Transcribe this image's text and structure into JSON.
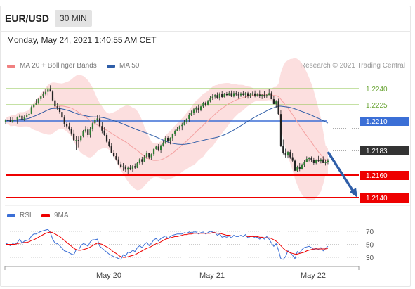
{
  "header": {
    "symbol": "EUR/USD",
    "timeframe": "30 MIN",
    "datetime": "Monday, May 24, 2021 1:40:55 AM CET"
  },
  "legend": {
    "ma20": {
      "label": "MA 20 + Bollinger Bands",
      "color": "#f08080"
    },
    "ma50": {
      "label": "MA 50",
      "color": "#2f5ea8"
    },
    "copyright": "Research © 2021 Trading Central"
  },
  "levels": [
    {
      "value": "1.2240",
      "color": "#8bc34a",
      "kind": "resistance"
    },
    {
      "value": "1.2225",
      "color": "#8bc34a",
      "kind": "resistance"
    },
    {
      "value": "1.2210",
      "color": "#3b6fd6",
      "kind": "pivot"
    },
    {
      "value": "1.2183",
      "color": "#333333",
      "kind": "last-price"
    },
    {
      "value": "1.2160",
      "color": "#ee0000",
      "kind": "target"
    },
    {
      "value": "1.2140",
      "color": "#ee0000",
      "kind": "target"
    }
  ],
  "rsi": {
    "legend_rsi": "RSI",
    "legend_ma": "9MA",
    "rsi_color": "#3b6fd6",
    "ma_color": "#ee0000",
    "ticks": [
      "70",
      "50",
      "30"
    ]
  },
  "xaxis": {
    "ticks": [
      "May 20",
      "May 21",
      "May 22"
    ]
  },
  "price_series": [
    [
      18.44,
      18.57,
      18.34,
      18.52
    ],
    [
      18.52,
      18.66,
      18.41,
      18.51
    ],
    [
      18.51,
      18.66,
      18.42,
      18.42
    ],
    [
      18.42,
      18.67,
      18.39,
      18.55
    ],
    [
      18.55,
      18.66,
      18.47,
      18.52
    ],
    [
      18.52,
      18.69,
      18.36,
      18.67
    ],
    [
      18.67,
      18.8,
      18.62,
      18.72
    ],
    [
      18.72,
      18.91,
      18.53,
      18.53
    ],
    [
      18.53,
      18.74,
      18.48,
      18.68
    ],
    [
      18.68,
      18.85,
      18.63,
      18.74
    ],
    [
      18.74,
      18.85,
      18.67,
      18.81
    ],
    [
      18.81,
      19.18,
      18.8,
      19.12
    ],
    [
      19.12,
      19.26,
      19.06,
      19.24
    ],
    [
      19.24,
      19.48,
      19.23,
      19.29
    ],
    [
      19.29,
      19.52,
      19.25,
      19.49
    ],
    [
      19.49,
      19.62,
      19.41,
      19.61
    ],
    [
      19.61,
      19.82,
      19.55,
      19.71
    ],
    [
      19.71,
      19.94,
      19.66,
      19.82
    ],
    [
      19.82,
      20.05,
      19.66,
      19.93
    ],
    [
      19.93,
      20.12,
      19.9,
      19.83
    ],
    [
      19.83,
      19.9,
      19.38,
      19.43
    ],
    [
      19.43,
      19.53,
      19.1,
      19.15
    ],
    [
      19.15,
      19.31,
      18.97,
      19.1
    ],
    [
      19.1,
      19.17,
      18.81,
      18.9
    ],
    [
      18.9,
      18.93,
      18.48,
      18.64
    ],
    [
      18.64,
      18.74,
      18.21,
      18.35
    ],
    [
      18.35,
      18.45,
      18.15,
      18.24
    ],
    [
      18.24,
      18.4,
      18.05,
      18.12
    ],
    [
      18.12,
      18.22,
      17.82,
      17.91
    ],
    [
      17.91,
      18.07,
      17.55,
      17.6
    ],
    [
      17.6,
      17.8,
      17.14,
      17.61
    ],
    [
      17.61,
      17.77,
      17.27,
      17.6
    ],
    [
      17.6,
      17.83,
      17.51,
      17.79
    ],
    [
      17.79,
      18.07,
      17.73,
      18.02
    ],
    [
      18.02,
      18.25,
      17.95,
      18.09
    ],
    [
      18.09,
      18.19,
      17.73,
      17.84
    ],
    [
      17.84,
      18.21,
      17.72,
      18.1
    ],
    [
      18.1,
      18.45,
      17.99,
      18.38
    ],
    [
      18.38,
      18.61,
      18.3,
      18.52
    ],
    [
      18.52,
      18.74,
      18.46,
      18.6
    ],
    [
      18.6,
      18.76,
      18.18,
      18.25
    ],
    [
      18.25,
      18.42,
      17.92,
      18.04
    ],
    [
      18.04,
      18.22,
      17.8,
      17.84
    ],
    [
      17.84,
      17.93,
      17.45,
      17.53
    ],
    [
      17.53,
      17.67,
      17.28,
      17.32
    ],
    [
      17.32,
      17.46,
      17.0,
      17.03
    ],
    [
      17.03,
      17.15,
      16.83,
      16.87
    ],
    [
      16.87,
      17.0,
      16.67,
      16.72
    ],
    [
      16.72,
      16.85,
      16.45,
      16.5
    ],
    [
      16.5,
      16.62,
      16.32,
      16.37
    ],
    [
      16.37,
      16.55,
      16.2,
      16.4
    ],
    [
      16.4,
      16.46,
      16.16,
      16.25
    ],
    [
      16.25,
      16.4,
      16.06,
      16.33
    ],
    [
      16.33,
      16.48,
      16.22,
      16.26
    ],
    [
      16.26,
      16.47,
      16.14,
      16.41
    ],
    [
      16.41,
      16.53,
      16.28,
      16.34
    ],
    [
      16.34,
      16.6,
      16.32,
      16.55
    ],
    [
      16.55,
      16.79,
      16.49,
      16.73
    ],
    [
      16.73,
      16.84,
      16.49,
      16.62
    ],
    [
      16.62,
      16.91,
      16.58,
      16.83
    ],
    [
      16.83,
      17.1,
      16.75,
      17.0
    ],
    [
      17.0,
      17.02,
      16.74,
      16.82
    ],
    [
      16.82,
      16.99,
      16.69,
      16.96
    ],
    [
      16.96,
      17.22,
      16.87,
      17.19
    ],
    [
      17.19,
      17.36,
      17.17,
      17.31
    ],
    [
      17.31,
      17.42,
      17.09,
      17.16
    ],
    [
      17.16,
      17.4,
      17.03,
      17.36
    ],
    [
      17.36,
      17.59,
      17.31,
      17.49
    ],
    [
      17.49,
      17.78,
      17.43,
      17.71
    ],
    [
      17.71,
      17.77,
      17.49,
      17.56
    ],
    [
      17.56,
      17.73,
      17.41,
      17.7
    ],
    [
      17.7,
      17.91,
      17.55,
      17.88
    ],
    [
      17.88,
      18.08,
      17.79,
      18.03
    ],
    [
      18.03,
      18.2,
      18.0,
      18.11
    ],
    [
      18.11,
      18.28,
      18.04,
      18.25
    ],
    [
      18.25,
      18.4,
      18.06,
      18.3
    ],
    [
      18.3,
      18.53,
      18.28,
      18.44
    ],
    [
      18.44,
      18.61,
      18.36,
      18.58
    ],
    [
      18.58,
      18.84,
      18.45,
      18.75
    ],
    [
      18.75,
      18.96,
      18.71,
      18.84
    ],
    [
      18.84,
      19.08,
      18.74,
      19.02
    ],
    [
      19.02,
      19.15,
      18.88,
      19.1
    ],
    [
      19.1,
      19.24,
      18.87,
      19.0
    ],
    [
      19.0,
      19.18,
      18.93,
      19.15
    ],
    [
      19.15,
      19.36,
      19.08,
      19.32
    ],
    [
      19.32,
      19.37,
      19.15,
      19.22
    ],
    [
      19.22,
      19.45,
      19.18,
      19.38
    ],
    [
      19.38,
      19.62,
      19.34,
      19.54
    ],
    [
      19.54,
      19.73,
      19.45,
      19.6
    ],
    [
      19.6,
      19.74,
      19.5,
      19.67
    ],
    [
      19.67,
      19.79,
      19.49,
      19.53
    ],
    [
      19.53,
      19.79,
      19.44,
      19.74
    ],
    [
      19.74,
      19.84,
      19.54,
      19.58
    ],
    [
      19.58,
      19.77,
      19.56,
      19.71
    ],
    [
      19.71,
      19.81,
      19.61,
      19.67
    ],
    [
      19.67,
      19.87,
      19.62,
      19.76
    ],
    [
      19.76,
      19.88,
      19.58,
      19.61
    ],
    [
      19.61,
      19.84,
      19.57,
      19.76
    ],
    [
      19.76,
      19.87,
      19.62,
      19.7
    ],
    [
      19.7,
      19.81,
      19.5,
      19.66
    ],
    [
      19.66,
      19.8,
      19.59,
      19.75
    ],
    [
      19.75,
      19.86,
      19.61,
      19.68
    ],
    [
      19.68,
      19.81,
      19.52,
      19.76
    ],
    [
      19.76,
      19.82,
      19.51,
      19.62
    ],
    [
      19.62,
      19.77,
      19.52,
      19.69
    ],
    [
      19.69,
      19.83,
      19.65,
      19.75
    ],
    [
      19.75,
      19.88,
      19.57,
      19.65
    ],
    [
      19.65,
      19.76,
      19.6,
      19.7
    ],
    [
      19.7,
      19.89,
      19.53,
      19.63
    ],
    [
      19.63,
      19.73,
      19.49,
      19.68
    ],
    [
      19.68,
      19.85,
      19.55,
      19.61
    ],
    [
      19.61,
      19.73,
      19.55,
      19.67
    ],
    [
      19.67,
      19.95,
      19.66,
      19.76
    ],
    [
      19.76,
      19.83,
      19.49,
      19.48
    ],
    [
      19.48,
      19.62,
      19.25,
      19.26
    ],
    [
      19.26,
      19.44,
      19.09,
      19.38
    ],
    [
      19.38,
      19.5,
      18.77,
      18.8
    ],
    [
      18.8,
      19.0,
      17.29,
      17.35
    ],
    [
      17.35,
      17.63,
      16.95,
      17.02
    ],
    [
      17.02,
      17.21,
      16.81,
      16.9
    ],
    [
      16.9,
      17.1,
      16.77,
      17.06
    ],
    [
      17.06,
      17.17,
      16.75,
      16.82
    ],
    [
      16.82,
      17.01,
      16.6,
      16.66
    ],
    [
      16.66,
      16.72,
      16.19,
      16.2
    ],
    [
      16.2,
      16.43,
      16.15,
      16.38
    ],
    [
      16.38,
      16.55,
      16.18,
      16.28
    ],
    [
      16.28,
      16.53,
      16.25,
      16.45
    ],
    [
      16.45,
      16.69,
      16.38,
      16.61
    ],
    [
      16.61,
      16.86,
      16.6,
      16.74
    ],
    [
      16.74,
      16.83,
      16.63,
      16.8
    ],
    [
      16.8,
      16.86,
      16.6,
      16.68
    ],
    [
      16.68,
      16.81,
      16.47,
      16.55
    ],
    [
      16.55,
      16.72,
      16.5,
      16.69
    ],
    [
      16.69,
      16.88,
      16.58,
      16.64
    ],
    [
      16.64,
      16.77,
      16.54,
      16.72
    ],
    [
      16.72,
      16.86,
      16.63,
      16.55
    ],
    [
      16.55,
      16.72,
      16.44,
      16.6
    ],
    [
      16.6,
      16.75,
      16.5,
      16.66
    ]
  ],
  "rsi_series": [
    [
      52,
      50,
      48,
      51,
      50,
      53,
      58,
      52,
      55,
      56,
      57,
      63,
      66,
      66,
      68,
      70,
      71,
      72,
      73,
      68,
      58,
      52,
      51,
      48,
      44,
      40,
      39,
      37,
      35,
      34,
      42,
      41,
      48,
      51,
      50,
      47,
      54,
      57,
      57,
      58,
      47,
      44,
      41,
      38,
      35,
      33,
      31,
      30,
      28,
      27,
      34,
      32,
      38,
      37,
      41,
      39,
      45,
      48,
      45,
      50,
      53,
      48,
      52,
      57,
      59,
      55,
      59,
      61,
      63,
      59,
      62,
      64,
      65,
      66,
      66,
      66,
      68,
      67,
      69,
      68,
      69,
      69,
      66,
      68,
      69,
      66,
      68,
      70,
      69,
      68,
      64,
      66,
      61,
      62,
      61,
      63,
      60,
      64,
      62,
      62,
      64,
      62,
      65,
      60,
      62,
      63,
      60,
      61,
      58,
      61,
      58,
      62,
      58,
      52,
      47,
      51,
      41,
      28,
      27,
      31,
      40,
      37,
      33,
      28,
      39,
      37,
      42,
      45,
      46,
      47,
      45,
      42,
      44,
      42,
      45,
      40,
      44,
      47
    ],
    [
      50,
      50,
      50,
      50,
      50,
      51,
      52,
      52,
      53,
      53,
      54,
      56,
      57,
      59,
      61,
      63,
      65,
      67,
      68,
      69,
      68,
      66,
      64,
      62,
      59,
      56,
      53,
      50,
      47,
      44,
      42,
      41,
      41,
      42,
      43,
      44,
      46,
      48,
      50,
      52,
      51,
      50,
      48,
      46,
      44,
      41,
      38,
      36,
      33,
      31,
      30,
      30,
      31,
      32,
      33,
      34,
      36,
      38,
      40,
      42,
      44,
      45,
      47,
      49,
      51,
      52,
      54,
      56,
      58,
      59,
      60,
      61,
      62,
      62,
      63,
      64,
      65,
      65,
      66,
      66,
      67,
      67,
      67,
      67,
      67,
      67,
      67,
      67,
      68,
      68,
      67,
      67,
      66,
      65,
      64,
      64,
      63,
      63,
      63,
      63,
      63,
      63,
      63,
      62,
      62,
      62,
      62,
      62,
      61,
      61,
      60,
      60,
      60,
      59,
      57,
      55,
      52,
      48,
      44,
      41,
      39,
      37,
      36,
      35,
      35,
      36,
      37,
      38,
      40,
      41,
      42,
      43,
      43,
      43,
      43,
      43,
      43,
      44
    ]
  ]
}
